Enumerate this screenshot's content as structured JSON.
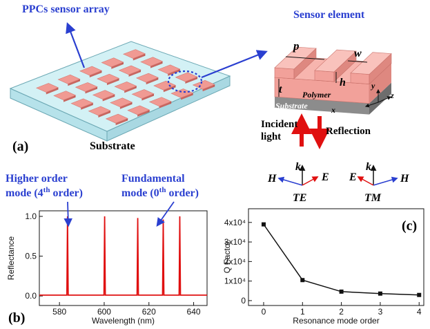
{
  "panel_a": {
    "array_label": "PPCs sensor array",
    "element_label": "Sensor element",
    "panel_label": "(a)",
    "substrate_label": "Substrate",
    "dims": {
      "p": "p",
      "w": "w",
      "h": "h",
      "t": "t"
    },
    "layers": {
      "polymer": "Polymer",
      "substrate": "Substrate"
    },
    "axes": {
      "x": "x",
      "y": "y",
      "z": "z"
    },
    "incident": [
      "Incident",
      "light"
    ],
    "reflection": "Reflection",
    "te": {
      "k": "k",
      "h": "H",
      "e": "E",
      "label": "TE"
    },
    "tm": {
      "k": "k",
      "e": "E",
      "h": "H",
      "label": "TM"
    }
  },
  "chart_data": [
    {
      "type": "line",
      "panel_label": "(b)",
      "x_label": "Wavelength (nm)",
      "y_label": "Reflectance",
      "annotations": [
        {
          "text": "Higher order",
          "mode": "mode (4",
          "superscript": "th",
          "suffix": " order)"
        },
        {
          "text": "Fundamental",
          "mode": "mode (0",
          "superscript": "th",
          "suffix": " order)"
        }
      ],
      "x": [
        571,
        583.3,
        583.6,
        583.9,
        599.9,
        600.2,
        600.5,
        614.7,
        615.0,
        615.3,
        626.1,
        626.4,
        626.7,
        633.5,
        633.8,
        634.1,
        646
      ],
      "series": [
        {
          "color": "#e01010",
          "values": [
            0.01,
            0.01,
            1.0,
            0.01,
            0.01,
            1.0,
            0.01,
            0.01,
            0.98,
            0.01,
            0.01,
            0.96,
            0.01,
            0.01,
            1.0,
            0.01,
            0.01
          ]
        }
      ],
      "xlim": [
        571,
        646
      ],
      "ylim": [
        -0.12,
        1.07
      ],
      "xticks": [
        580,
        600,
        620,
        640
      ],
      "yticks": [
        {
          "value": 0,
          "label": "0.0"
        },
        {
          "value": 0.5,
          "label": "0.5"
        },
        {
          "value": 1,
          "label": "1.0"
        }
      ]
    },
    {
      "type": "line",
      "panel_label": "(c)",
      "x_label": "Resonance mode order",
      "y_label": "Q Factor",
      "markers": true,
      "x": [
        0,
        1,
        2,
        3,
        4
      ],
      "series": [
        {
          "color": "#111111",
          "values": [
            39000,
            10500,
            4600,
            3600,
            2900
          ]
        }
      ],
      "xlim": [
        -0.39,
        4.12
      ],
      "ylim": [
        -2500,
        47000
      ],
      "xticks": [
        0,
        1,
        2,
        3,
        4
      ],
      "yticks": [
        0,
        {
          "value": 10000,
          "label": "1x10⁴"
        },
        {
          "value": 20000,
          "label": "2x10⁴"
        },
        {
          "value": 30000,
          "label": "3x10⁴"
        },
        {
          "value": 40000,
          "label": "4x10⁴"
        }
      ]
    }
  ]
}
